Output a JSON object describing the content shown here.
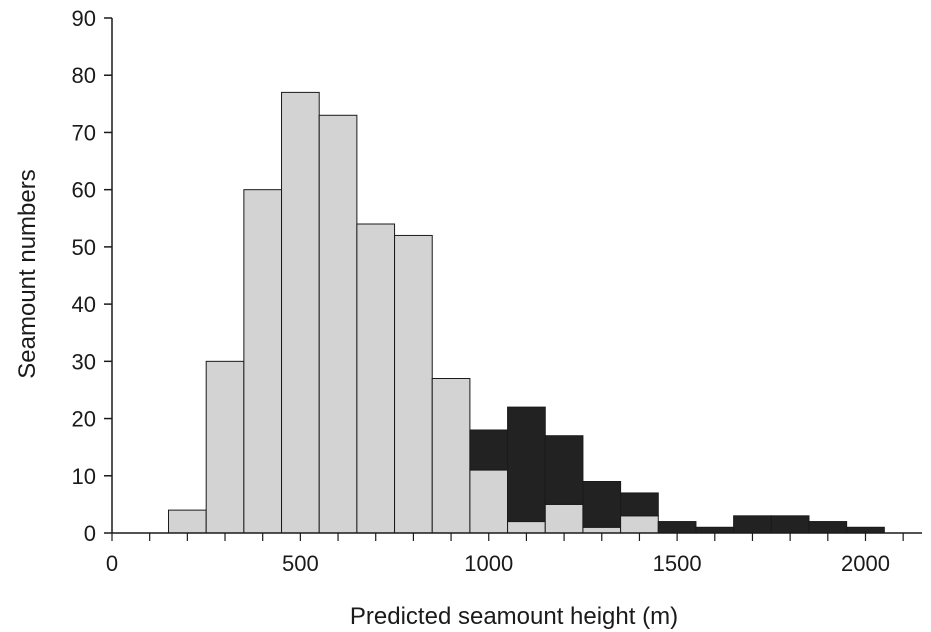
{
  "chart_data": {
    "type": "bar",
    "stacked": true,
    "xlabel": "Predicted seamount height (m)",
    "ylabel": "Seamount numbers",
    "xlim": [
      0,
      2150
    ],
    "ylim": [
      0,
      90
    ],
    "x_ticks": [
      0,
      500,
      1000,
      1500,
      2000
    ],
    "y_ticks": [
      0,
      10,
      20,
      30,
      40,
      50,
      60,
      70,
      80,
      90
    ],
    "bin_width": 100,
    "bin_centers": [
      200,
      300,
      400,
      500,
      600,
      700,
      800,
      900,
      1000,
      1100,
      1200,
      1300,
      1400,
      1500,
      1600,
      1700,
      1800,
      1900,
      2000
    ],
    "series": [
      {
        "color": "#d3d3d3",
        "values": [
          4,
          30,
          60,
          77,
          73,
          54,
          52,
          27,
          11,
          2,
          5,
          1,
          3,
          0,
          0,
          0,
          0,
          0,
          0
        ]
      },
      {
        "color": "#222222",
        "values": [
          0,
          0,
          0,
          0,
          0,
          0,
          0,
          0,
          7,
          20,
          12,
          8,
          4,
          2,
          1,
          3,
          3,
          2,
          1
        ]
      }
    ],
    "grid": false,
    "legend": "none"
  }
}
